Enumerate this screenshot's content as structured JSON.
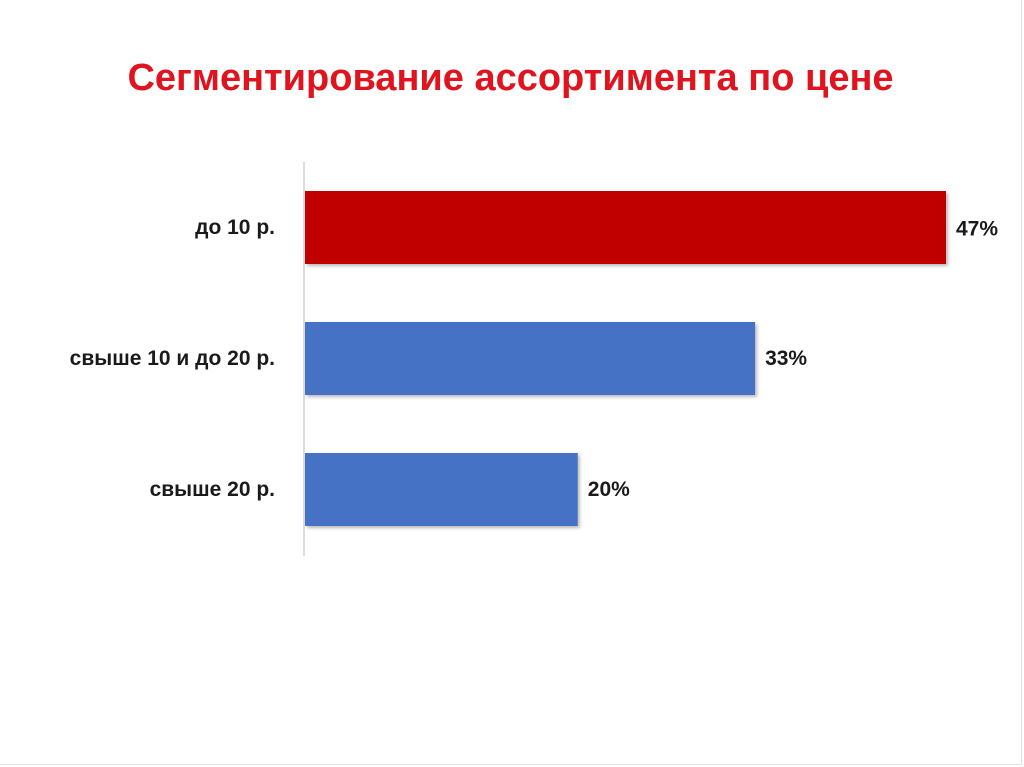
{
  "slide": {
    "title": "Сегментирование ассортимента по цене",
    "title_color": "#e0141e"
  },
  "chart_data": {
    "type": "bar",
    "orientation": "horizontal",
    "categories": [
      "до 10 р.",
      "свыше 10  и до 20 р.",
      "свыше 20 р."
    ],
    "values": [
      47,
      33,
      20
    ],
    "value_labels": [
      "47%",
      "33%",
      "20%"
    ],
    "unit": "%",
    "colors": [
      "#c00000",
      "#4472c4",
      "#4472c4"
    ],
    "xlim": [
      0,
      47
    ],
    "grid": false,
    "legend": "none"
  }
}
